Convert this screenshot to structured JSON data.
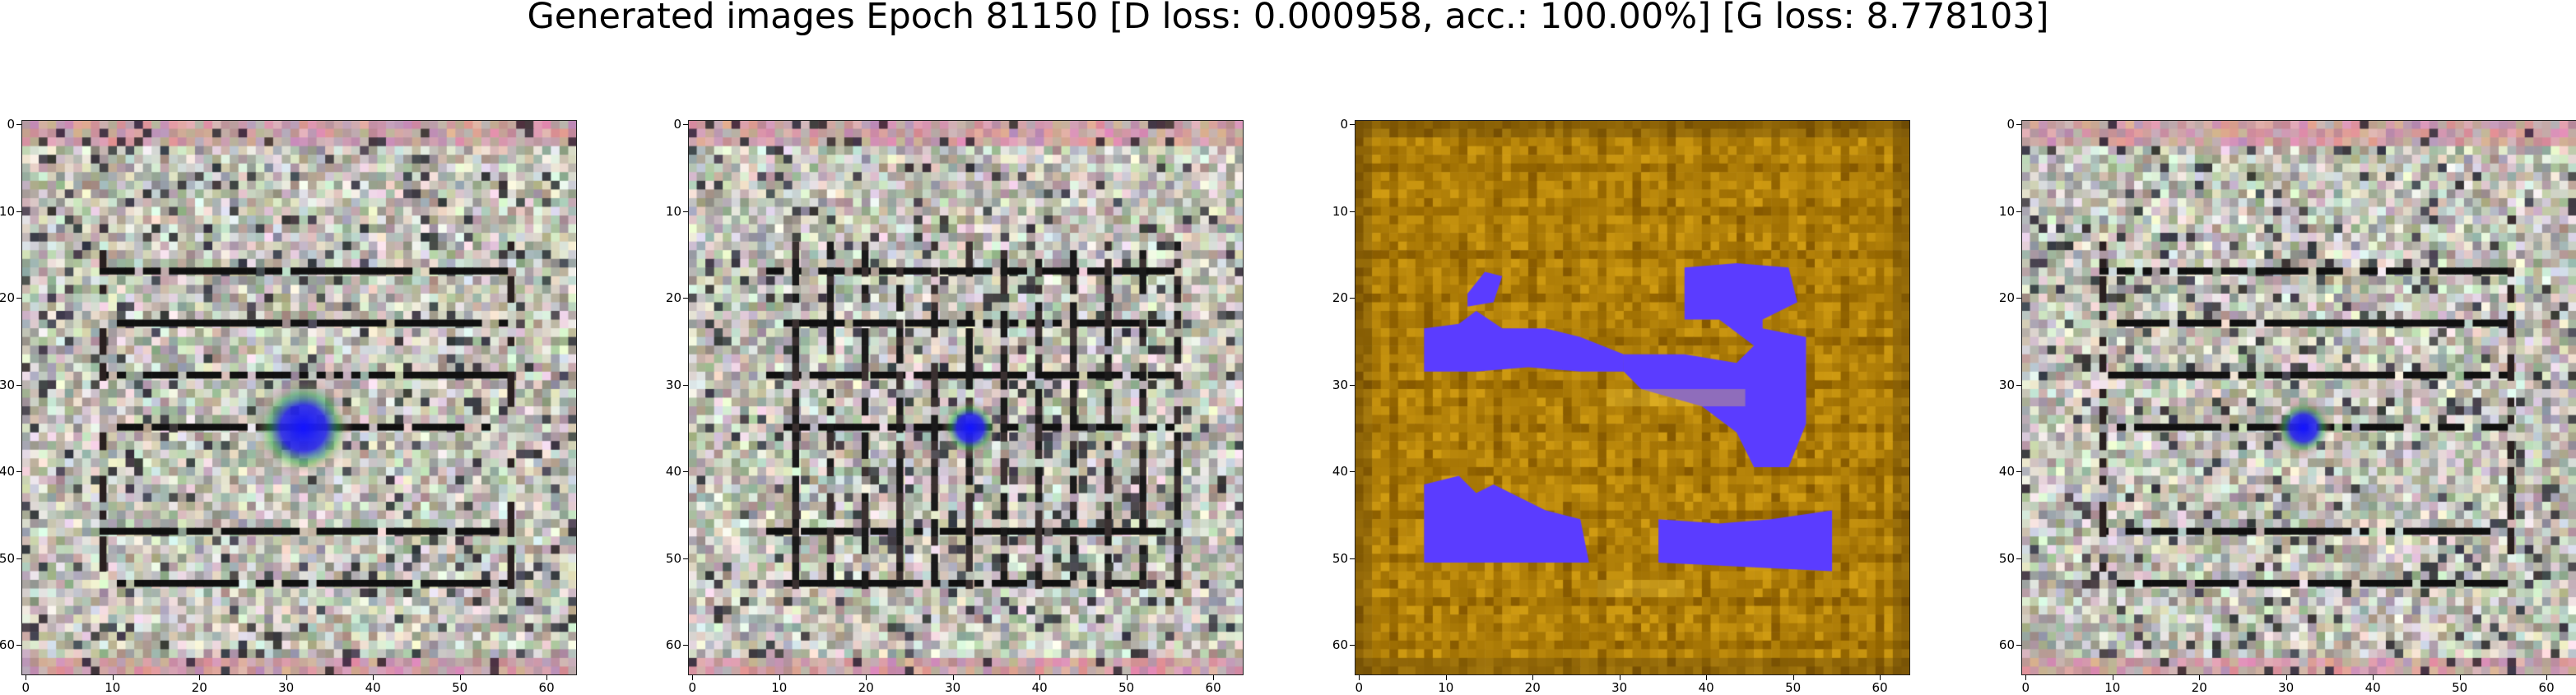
{
  "figure": {
    "title": "Generated images Epoch 81150 [D loss: 0.000958, acc.: 100.00%] [G loss: 8.778103]",
    "panels": [
      {
        "style": "maze-grey",
        "blob": "large"
      },
      {
        "style": "maze-grey-vertical",
        "blob": "small"
      },
      {
        "style": "ochre-blue",
        "blob": "none"
      },
      {
        "style": "maze-grey",
        "blob": "small"
      }
    ],
    "tick_labels": [
      "0",
      "10",
      "20",
      "30",
      "40",
      "50",
      "60"
    ],
    "tick_values": [
      0,
      10,
      20,
      30,
      40,
      50,
      60
    ],
    "image_size": 64,
    "colors": {
      "grey_base": "#c2c2b8",
      "dark_line": "#111111",
      "ochre": "#b8860b",
      "blue": "#5b3cff"
    }
  }
}
